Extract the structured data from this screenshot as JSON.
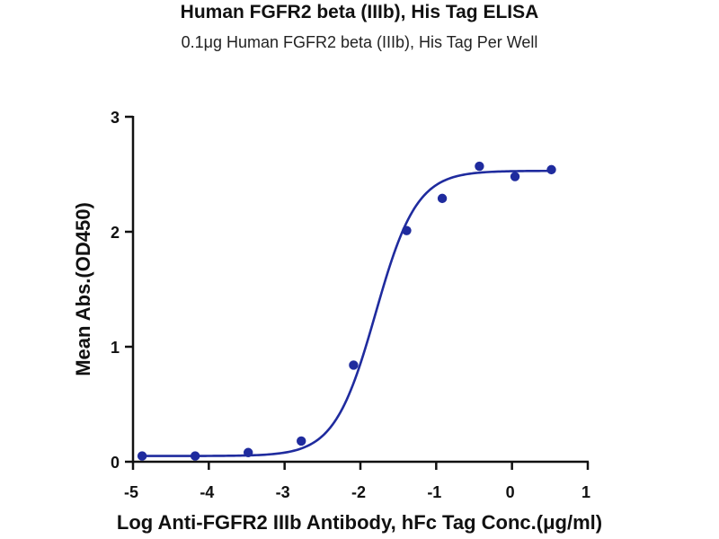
{
  "chart_data": {
    "type": "scatter",
    "title": "Human FGFR2 beta (IIIb), His Tag ELISA",
    "subtitle": "0.1μg Human FGFR2 beta (IIIb), His Tag Per Well",
    "xlabel": "Log Anti-FGFR2 IIIb Antibody, hFc Tag Conc.(μg/ml)",
    "ylabel": "Mean Abs.(OD450)",
    "xlim": [
      -5,
      1
    ],
    "ylim": [
      0,
      3
    ],
    "x_ticks": [
      "-5",
      "-4",
      "-3",
      "-2",
      "-1",
      "0",
      "1"
    ],
    "y_ticks": [
      "0",
      "1",
      "2",
      "3"
    ],
    "grid": false,
    "color": "#1f2b9e",
    "series": [
      {
        "x": [
          -4.88,
          -4.18,
          -3.48,
          -2.78,
          -2.09,
          -1.39,
          -0.92,
          -0.43,
          0.04,
          0.52
        ],
        "y": [
          0.05,
          0.05,
          0.08,
          0.18,
          0.84,
          2.01,
          2.29,
          2.57,
          2.48,
          2.54
        ]
      }
    ],
    "fit_curve": {
      "model": "4PL",
      "bottom": 0.05,
      "top": 2.53,
      "log_ec50": -1.8,
      "hill_slope": 1.6
    }
  }
}
